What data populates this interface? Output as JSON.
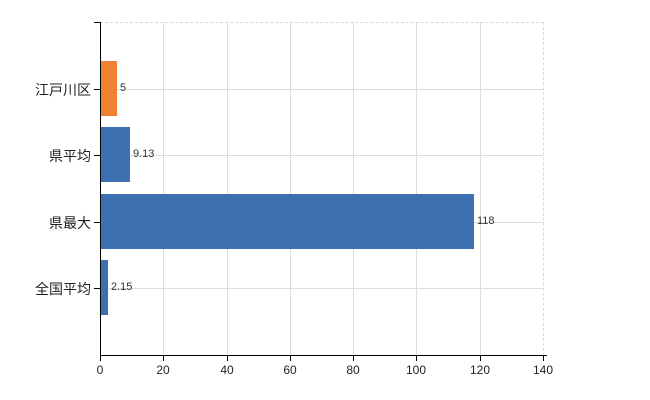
{
  "chart_data": {
    "type": "bar",
    "orientation": "horizontal",
    "title": "",
    "xlabel": "",
    "ylabel": "",
    "categories": [
      "江戸川区",
      "県平均",
      "県最大",
      "全国平均"
    ],
    "values": [
      5,
      9.13,
      118,
      2.15
    ],
    "value_labels": [
      "5",
      "9.13",
      "118",
      "2.15"
    ],
    "bar_colors": [
      "#ed8233",
      "#3e6fb0",
      "#3e6fb0",
      "#3e6fb0"
    ],
    "x_ticks": [
      0,
      20,
      40,
      60,
      80,
      100,
      120,
      140
    ],
    "x_tick_labels": [
      "0",
      "20",
      "40",
      "60",
      "80",
      "100",
      "120",
      "140"
    ],
    "xlim": [
      0,
      140
    ],
    "grid": true,
    "legend": false
  },
  "colors": {
    "background": "#ffffff",
    "axis": "#000000",
    "gridline": "#dcdcdc",
    "plot_border": "#d9d9de",
    "category_text": "#222222",
    "value_text": "#333333",
    "tick_text": "#222222",
    "bar_blue": "#3e6fb0",
    "bar_orange": "#ed8233"
  }
}
